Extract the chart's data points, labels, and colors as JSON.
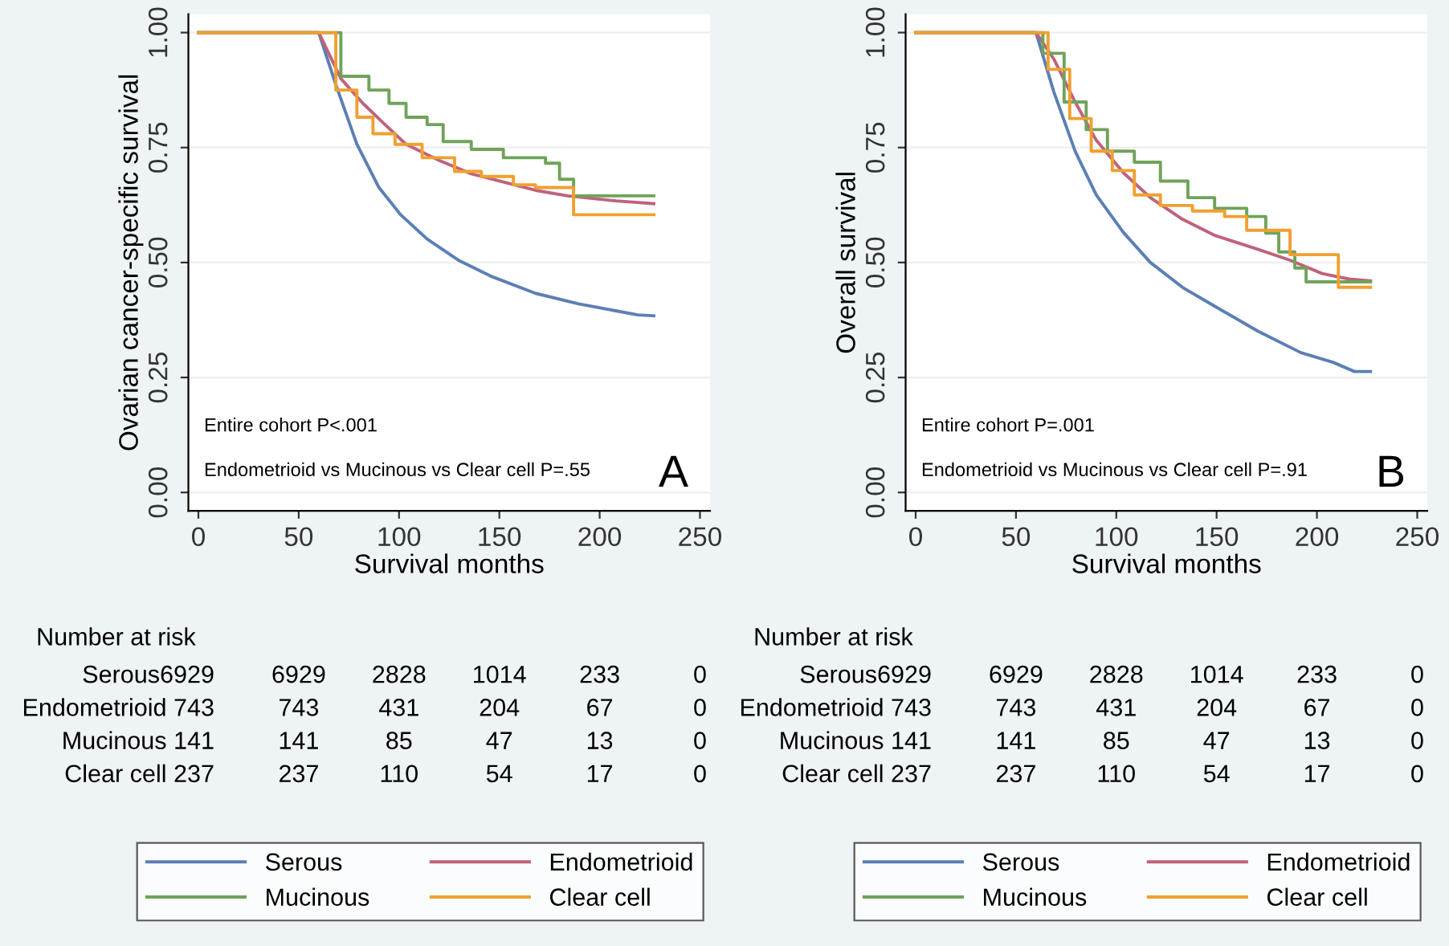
{
  "chart_data": [
    {
      "type": "step",
      "xlabel": "Survival months",
      "ylabel": "Ovarian cancer-specific survival",
      "xlim": [
        -5,
        255
      ],
      "xticks": [
        0,
        50,
        100,
        150,
        200,
        250
      ],
      "ylim": [
        -0.04,
        1.04
      ],
      "yticks": [
        {
          "value": 0,
          "label": "0.00"
        },
        {
          "value": 0.25,
          "label": "0.25"
        },
        {
          "value": 0.5,
          "label": "0.50"
        },
        {
          "value": 0.75,
          "label": "0.75"
        },
        {
          "value": 1,
          "label": "1.00"
        }
      ],
      "grid": "y",
      "legend": "bottom",
      "series": [
        {
          "name": "Serous",
          "type": "line",
          "color": "#5b7fb5",
          "x": [
            0,
            60,
            68.5,
            79,
            90,
            100.8,
            114,
            130,
            146.5,
            168,
            189.5,
            208,
            219,
            227
          ],
          "values": [
            1,
            1,
            0.887,
            0.757,
            0.663,
            0.604,
            0.551,
            0.504,
            0.469,
            0.433,
            0.41,
            0.395,
            0.386,
            0.384
          ]
        },
        {
          "name": "Endometrioid",
          "type": "line",
          "color": "#c0627a",
          "x": [
            0,
            60,
            71,
            82,
            93,
            103.5,
            120,
            136,
            152,
            168,
            184,
            208,
            227
          ],
          "values": [
            1,
            1,
            0.9,
            0.846,
            0.8,
            0.757,
            0.722,
            0.693,
            0.675,
            0.657,
            0.645,
            0.634,
            0.628
          ]
        },
        {
          "name": "Mucinous",
          "color": "#6fa35a",
          "x": [
            0,
            60,
            71,
            85,
            95,
            103.5,
            114,
            122,
            136,
            152,
            173,
            180,
            187,
            227
          ],
          "values": [
            1,
            1,
            0.905,
            0.875,
            0.846,
            0.816,
            0.8,
            0.763,
            0.746,
            0.728,
            0.716,
            0.681,
            0.645,
            0.645
          ]
        },
        {
          "name": "Clear cell",
          "color": "#f0a030",
          "x": [
            0,
            60,
            68.5,
            79,
            87,
            98,
            111.5,
            127.7,
            141,
            157,
            168,
            187,
            227
          ],
          "values": [
            1,
            1,
            0.875,
            0.816,
            0.78,
            0.757,
            0.728,
            0.698,
            0.687,
            0.669,
            0.663,
            0.604,
            0.604
          ]
        }
      ],
      "annotations": [
        "Entire cohort P<.001",
        "Endometrioid vs Mucinous vs Clear cell P=.55",
        "A",
        "Number at risk",
        "Serous6929",
        "6929",
        "2828",
        "1014",
        "233",
        "0",
        "Endometrioid 743",
        "743",
        "431",
        "204",
        "67",
        "0",
        "Mucinous 141",
        "141",
        "85",
        "47",
        "13",
        "0",
        "Clear cell 237",
        "237",
        "110",
        "54",
        "17",
        "0"
      ]
    },
    {
      "type": "step",
      "xlabel": "Survival months",
      "ylabel": "Overall survival",
      "xlim": [
        -5,
        255
      ],
      "xticks": [
        0,
        50,
        100,
        150,
        200,
        250
      ],
      "ylim": [
        -0.04,
        1.04
      ],
      "yticks": [
        {
          "value": 0,
          "label": "0.00"
        },
        {
          "value": 0.25,
          "label": "0.25"
        },
        {
          "value": 0.5,
          "label": "0.50"
        },
        {
          "value": 0.75,
          "label": "0.75"
        },
        {
          "value": 1,
          "label": "1.00"
        }
      ],
      "grid": "y",
      "legend": "bottom",
      "series": [
        {
          "name": "Serous",
          "type": "line",
          "color": "#5b7fb5",
          "x": [
            0,
            60,
            68.8,
            79.5,
            90,
            103.6,
            117,
            133,
            149,
            170.5,
            192,
            208,
            218.7,
            226.7
          ],
          "values": [
            1,
            1,
            0.872,
            0.742,
            0.647,
            0.565,
            0.5,
            0.446,
            0.405,
            0.351,
            0.304,
            0.283,
            0.263,
            0.263
          ]
        },
        {
          "name": "Endometrioid",
          "type": "line",
          "color": "#c0627a",
          "x": [
            0,
            60,
            68.8,
            79.5,
            90,
            103.6,
            117,
            133,
            149,
            170.5,
            186.6,
            202.6,
            216,
            226.7
          ],
          "values": [
            1,
            1,
            0.943,
            0.849,
            0.766,
            0.695,
            0.641,
            0.594,
            0.559,
            0.529,
            0.505,
            0.476,
            0.464,
            0.46
          ]
        },
        {
          "name": "Mucinous",
          "color": "#6fa35a",
          "x": [
            0,
            60,
            63.4,
            74,
            85,
            95.6,
            109,
            122,
            135.7,
            149,
            165,
            174.5,
            181,
            189,
            194.6,
            226.7
          ],
          "values": [
            1,
            1,
            0.955,
            0.849,
            0.789,
            0.742,
            0.718,
            0.677,
            0.641,
            0.618,
            0.6,
            0.564,
            0.523,
            0.488,
            0.458,
            0.458
          ]
        },
        {
          "name": "Clear cell",
          "color": "#f0a030",
          "x": [
            0,
            60,
            66,
            76.8,
            87.5,
            98,
            109,
            122,
            138,
            154,
            165,
            186.6,
            210.7,
            226.7
          ],
          "values": [
            1,
            1,
            0.92,
            0.813,
            0.742,
            0.7,
            0.647,
            0.624,
            0.612,
            0.6,
            0.57,
            0.517,
            0.446,
            0.446
          ]
        }
      ],
      "annotations": [
        "Entire cohort P=.001",
        "Endometrioid vs Mucinous vs Clear cell P=.91",
        "B",
        "Number at risk",
        "Serous6929",
        "6929",
        "2828",
        "1014",
        "233",
        "0",
        "Endometrioid 743",
        "743",
        "431",
        "204",
        "67",
        "0",
        "Mucinous 141",
        "141",
        "85",
        "47",
        "13",
        "0",
        "Clear cell 237",
        "237",
        "110",
        "54",
        "17",
        "0"
      ]
    }
  ]
}
